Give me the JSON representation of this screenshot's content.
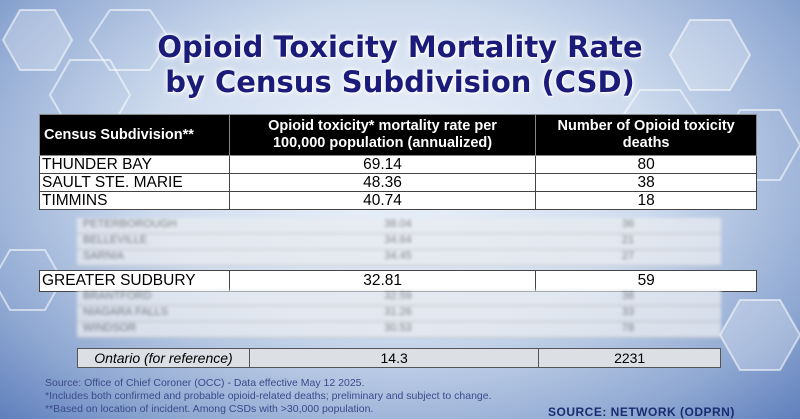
{
  "title": {
    "line1": "Opioid Toxicity Mortality Rate",
    "line2": "by Census Subdivision (CSD)"
  },
  "table": {
    "headers": [
      "Census Subdivision**",
      "Opioid toxicity* mortality rate per 100,000 population (annualized)",
      "Number of Opioid toxicity deaths"
    ],
    "header_lines": {
      "h2a": "Opioid toxicity* mortality rate per",
      "h2b": "100,000 population (annualized)",
      "h3a": "Number of Opioid toxicity",
      "h3b": "deaths"
    },
    "rows": [
      {
        "csd": "THUNDER BAY",
        "rate": "69.14",
        "deaths": "80"
      },
      {
        "csd": "SAULT STE. MARIE",
        "rate": "48.36",
        "deaths": "38"
      },
      {
        "csd": "TIMMINS",
        "rate": "40.74",
        "deaths": "18"
      }
    ],
    "blurred_rows_top": [
      {
        "csd": "PETERBOROUGH",
        "rate": "38.04",
        "deaths": "36"
      },
      {
        "csd": "BELLEVILLE",
        "rate": "34.64",
        "deaths": "21"
      },
      {
        "csd": "SARNIA",
        "rate": "34.45",
        "deaths": "27"
      }
    ],
    "highlight_row": {
      "csd": "GREATER SUDBURY",
      "rate": "32.81",
      "deaths": "59"
    },
    "blurred_rows_bottom": [
      {
        "csd": "BRANTFORD",
        "rate": "32.59",
        "deaths": "38"
      },
      {
        "csd": "NIAGARA FALLS",
        "rate": "31.26",
        "deaths": "33"
      },
      {
        "csd": "WINDSOR",
        "rate": "30.53",
        "deaths": "78"
      }
    ],
    "reference_row": {
      "csd": "Ontario (for reference)",
      "rate": "14.3",
      "deaths": "2231"
    }
  },
  "footnotes": {
    "source": "Source: Office of Chief Coroner (OCC) - Data effective May 12 2025.",
    "note1": "*Includes both confirmed and probable opioid-related deaths; preliminary and subject to change.",
    "note2": "**Based on location of incident. Among CSDs with >30,000 population."
  },
  "broadcast_source": "SOURCE: NETWORK (ODPRN)"
}
